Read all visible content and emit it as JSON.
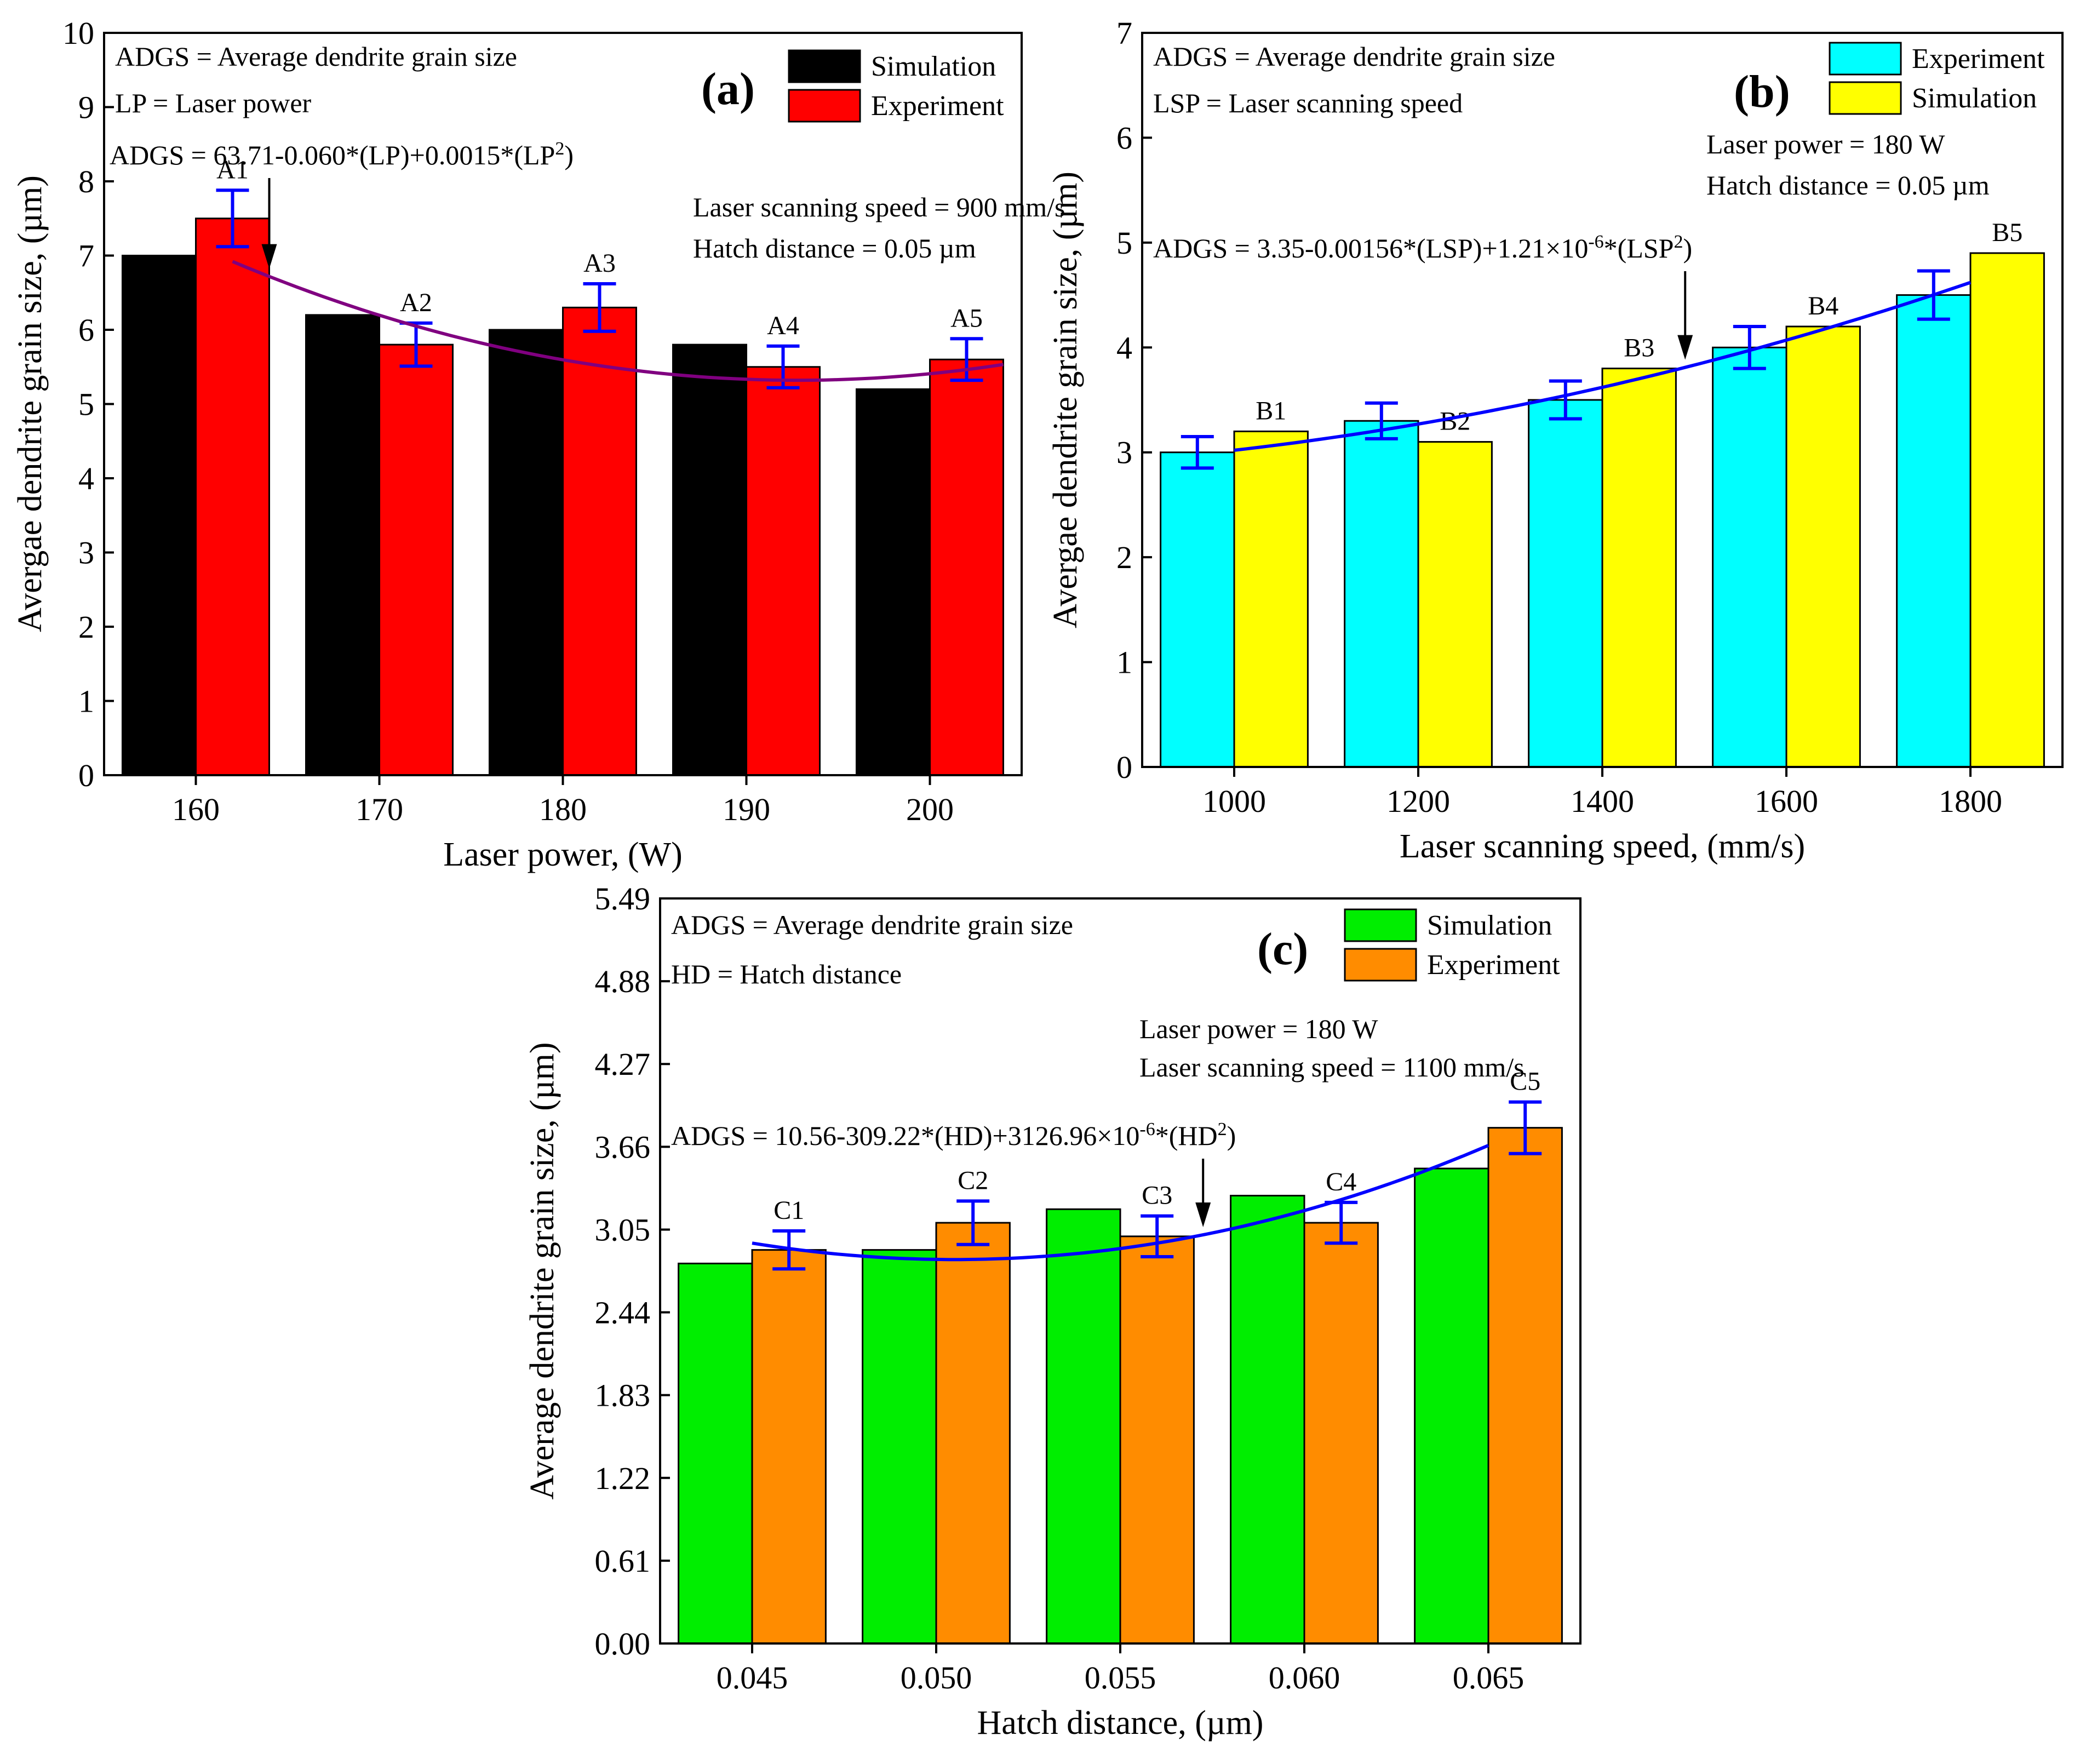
{
  "chart_data": [
    {
      "id": "a",
      "type": "bar",
      "panel_label": "(a)",
      "xlabel": "Laser power, (W)",
      "ylabel": "Avergae dendrite grain size, (µm)",
      "ylim": [
        0,
        10
      ],
      "yticks": [
        "0",
        "1",
        "2",
        "3",
        "4",
        "5",
        "6",
        "7",
        "8",
        "9",
        "10"
      ],
      "categories": [
        "160",
        "170",
        "180",
        "190",
        "200"
      ],
      "series": [
        {
          "name": "Simulation",
          "color": "#000000",
          "values": [
            7.0,
            6.2,
            6.0,
            5.8,
            5.2
          ],
          "errors": null
        },
        {
          "name": "Experiment",
          "color": "#ff0000",
          "values": [
            7.5,
            5.8,
            6.3,
            5.5,
            5.6
          ],
          "errors": [
            0.38,
            0.29,
            0.32,
            0.28,
            0.28
          ]
        }
      ],
      "bar_labels": [
        "A1",
        "A2",
        "A3",
        "A4",
        "A5"
      ],
      "label_series": 1,
      "legend": [
        "Simulation",
        "Experiment"
      ],
      "notes": [
        "ADGS = Average dendrite grain size",
        "LP = Laser power",
        "Laser scanning speed = 900 mm/s",
        "Hatch distance = 0.05 µm"
      ],
      "equation": {
        "prefix": "ADGS = 63.71-0.060*(LP)+0.0015*(LP",
        "sup": "2",
        "suffix": ")"
      },
      "fit": {
        "color": "#800080",
        "coeffs": [
          7.134,
          -1.1065,
          0.16875
        ],
        "x_start": 0.2,
        "x_end": 4.4,
        "arrow_x": 0.4
      },
      "error_color": "#0000ff"
    },
    {
      "id": "b",
      "type": "bar",
      "panel_label": "(b)",
      "xlabel": "Laser scanning speed, (mm/s)",
      "ylabel": "Avergae dendrite grain size, (µm)",
      "ylim": [
        0,
        7
      ],
      "yticks": [
        "0",
        "1",
        "2",
        "3",
        "4",
        "5",
        "6",
        "7"
      ],
      "categories": [
        "1000",
        "1200",
        "1400",
        "1600",
        "1800"
      ],
      "series": [
        {
          "name": "Experiment",
          "color": "#00ffff",
          "values": [
            3.0,
            3.3,
            3.5,
            4.0,
            4.5
          ],
          "errors": [
            0.15,
            0.17,
            0.18,
            0.2,
            0.23
          ]
        },
        {
          "name": "Simulation",
          "color": "#ffff00",
          "values": [
            3.2,
            3.1,
            3.8,
            4.2,
            4.9
          ],
          "errors": null
        }
      ],
      "bar_labels": [
        "B1",
        "B2",
        "B3",
        "B4",
        "B5"
      ],
      "label_series": 1,
      "legend": [
        "Experiment",
        "Simulation"
      ],
      "notes": [
        "ADGS = Average dendrite grain size",
        "LSP = Laser scanning speed",
        "Laser power = 180 W",
        "Hatch distance = 0.05 µm"
      ],
      "equation": {
        "prefix": "ADGS = 3.35-0.00156*(LSP)+1.21×10",
        "sup": "-6",
        "suffix": "*(LSP",
        "sup2": "2",
        "suffix2": ")"
      },
      "fit": {
        "color": "#0000ff",
        "coeffs": [
          3.02,
          0.2,
          0.05
        ],
        "x_start": 0,
        "x_end": 4,
        "arrow_x": 2.45
      },
      "error_color": "#0000ff"
    },
    {
      "id": "c",
      "type": "bar",
      "panel_label": "(c)",
      "xlabel": "Hatch distance, (µm)",
      "ylabel": "Average dendrite grain size, (µm)",
      "ylim": [
        0,
        5.49
      ],
      "yticks": [
        "0.00",
        "0.61",
        "1.22",
        "1.83",
        "2.44",
        "3.05",
        "3.66",
        "4.27",
        "4.88",
        "5.49"
      ],
      "categories": [
        "0.045",
        "0.050",
        "0.055",
        "0.060",
        "0.065"
      ],
      "series": [
        {
          "name": "Simulation",
          "color": "#00ee00",
          "values": [
            2.8,
            2.9,
            3.2,
            3.3,
            3.5
          ],
          "errors": null
        },
        {
          "name": "Experiment",
          "color": "#ff8c00",
          "values": [
            2.9,
            3.1,
            3.0,
            3.1,
            3.8
          ],
          "errors": [
            0.14,
            0.16,
            0.15,
            0.15,
            0.19
          ]
        }
      ],
      "bar_labels": [
        "C1",
        "C2",
        "C3",
        "C4",
        "C5"
      ],
      "label_series": 1,
      "legend": [
        "Simulation",
        "Experiment"
      ],
      "notes": [
        "ADGS = Average dendrite grain size",
        "HD = Hatch distance",
        "Laser power = 180 W",
        "Laser scanning speed = 1100 mm/s"
      ],
      "equation": {
        "prefix": "ADGS = 10.56-309.22*(HD)+3126.96×10",
        "sup": "-6",
        "suffix": "*(HD",
        "sup2": "2",
        "suffix2": ")"
      },
      "fit": {
        "color": "#0000ff",
        "coeffs": [
          2.95,
          -0.22,
          0.1
        ],
        "x_start": 0,
        "x_end": 4,
        "arrow_x": 2.45
      },
      "error_color": "#0000ff"
    }
  ]
}
